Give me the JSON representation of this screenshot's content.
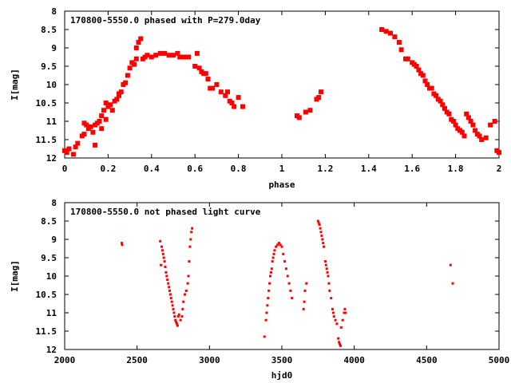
{
  "chart_data": [
    {
      "type": "scatter",
      "title": "170800-5550.0 phased with P=279.0day",
      "xlabel": "phase",
      "ylabel": "I[mag]",
      "xlim": [
        0,
        2
      ],
      "ylim": [
        12,
        8
      ],
      "y_inverted": true,
      "xticks": [
        0,
        0.2,
        0.4,
        0.6,
        0.8,
        1,
        1.2,
        1.4,
        1.6,
        1.8,
        2
      ],
      "xtick_labels": [
        "0",
        "0.2",
        "0.4",
        "0.6",
        "0.8",
        "1",
        "1.2",
        "1.4",
        "1.6",
        "1.8",
        "2"
      ],
      "yticks": [
        8,
        8.5,
        9,
        9.5,
        10,
        10.5,
        11,
        11.5,
        12
      ],
      "ytick_labels": [
        "8",
        "8.5",
        "9",
        "9.5",
        "10",
        "10.5",
        "11",
        "11.5",
        "12"
      ],
      "grid": false,
      "marker_color": "#ff0000",
      "series": [
        {
          "x": [
            0.0,
            0.01,
            0.02,
            0.04,
            0.05,
            0.06,
            0.08,
            0.09,
            0.09,
            0.1,
            0.11,
            0.12,
            0.13,
            0.14,
            0.14,
            0.15,
            0.16,
            0.17,
            0.17,
            0.18,
            0.19,
            0.19,
            0.2,
            0.21,
            0.22,
            0.23,
            0.24,
            0.25,
            0.25,
            0.26,
            0.27,
            0.28,
            0.29,
            0.3,
            0.31,
            0.32,
            0.33,
            0.33,
            0.34,
            0.35,
            0.36,
            0.37,
            0.38,
            0.4,
            0.42,
            0.44,
            0.46,
            0.48,
            0.5,
            0.52,
            0.53,
            0.55,
            0.57,
            0.6,
            0.61,
            0.62,
            0.63,
            0.64,
            0.65,
            0.66,
            0.67,
            0.68,
            0.7,
            0.72,
            0.74,
            0.75,
            0.76,
            0.77,
            0.78,
            0.8,
            0.82,
            1.07,
            1.08,
            1.11,
            1.13,
            1.16,
            1.17,
            1.18,
            1.46,
            1.48,
            1.5,
            1.52,
            1.54,
            1.55,
            1.57,
            1.58,
            1.6,
            1.61,
            1.62,
            1.63,
            1.64,
            1.65,
            1.66,
            1.67,
            1.68,
            1.69,
            1.7,
            1.71,
            1.72,
            1.73,
            1.74,
            1.75,
            1.76,
            1.77,
            1.78,
            1.79,
            1.8,
            1.81,
            1.82,
            1.83,
            1.84,
            1.85,
            1.86,
            1.87,
            1.88,
            1.89,
            1.9,
            1.91,
            1.92,
            1.94,
            1.96,
            1.98,
            1.99,
            2.0
          ],
          "y": [
            11.8,
            11.85,
            11.75,
            11.9,
            11.7,
            11.6,
            11.4,
            11.05,
            11.35,
            11.1,
            11.2,
            11.15,
            11.3,
            11.1,
            11.65,
            11.05,
            11.0,
            10.85,
            11.2,
            10.7,
            10.5,
            10.95,
            10.6,
            10.55,
            10.7,
            10.45,
            10.4,
            10.3,
            10.25,
            10.2,
            10.0,
            9.95,
            9.75,
            9.55,
            9.4,
            9.45,
            9.3,
            9.0,
            8.85,
            8.75,
            9.3,
            9.25,
            9.2,
            9.25,
            9.2,
            9.15,
            9.15,
            9.2,
            9.2,
            9.15,
            9.25,
            9.25,
            9.25,
            9.5,
            9.15,
            9.55,
            9.65,
            9.7,
            9.7,
            9.85,
            10.1,
            10.1,
            10.0,
            10.2,
            10.3,
            10.2,
            10.45,
            10.5,
            10.6,
            10.35,
            10.6,
            10.85,
            10.9,
            10.75,
            10.7,
            10.4,
            10.35,
            10.2,
            8.5,
            8.55,
            8.6,
            8.7,
            8.85,
            9.05,
            9.3,
            9.3,
            9.4,
            9.45,
            9.5,
            9.6,
            9.7,
            9.75,
            9.9,
            10.0,
            10.1,
            10.1,
            10.25,
            10.3,
            10.4,
            10.45,
            10.55,
            10.65,
            10.75,
            10.8,
            10.95,
            11.0,
            11.1,
            11.2,
            11.25,
            11.3,
            11.4,
            10.8,
            10.9,
            11.0,
            11.1,
            11.25,
            11.35,
            11.4,
            11.5,
            11.45,
            11.1,
            11.0,
            11.8,
            11.85
          ]
        }
      ]
    },
    {
      "type": "scatter",
      "title": "170800-5550.0 not phased light curve",
      "xlabel": "hjd0",
      "ylabel": "I[mag]",
      "xlim": [
        2000,
        5000
      ],
      "ylim": [
        12,
        8
      ],
      "y_inverted": true,
      "xticks": [
        2000,
        2500,
        3000,
        3500,
        4000,
        4500,
        5000
      ],
      "xtick_labels": [
        "2000",
        "2500",
        "3000",
        "3500",
        "4000",
        "4500",
        "5000"
      ],
      "yticks": [
        8,
        8.5,
        9,
        9.5,
        10,
        10.5,
        11,
        11.5,
        12
      ],
      "ytick_labels": [
        "8",
        "8.5",
        "9",
        "9.5",
        "10",
        "10.5",
        "11",
        "11.5",
        "12"
      ],
      "grid": false,
      "marker_color": "#ff0000",
      "series": [
        {
          "x": [
            2395,
            2397,
            2660,
            2665,
            2670,
            2675,
            2680,
            2685,
            2690,
            2695,
            2700,
            2705,
            2710,
            2715,
            2720,
            2725,
            2730,
            2735,
            2740,
            2745,
            2750,
            2755,
            2760,
            2765,
            2770,
            2775,
            2780,
            2785,
            2790,
            2800,
            2810,
            2815,
            2820,
            2830,
            2840,
            2850,
            2855,
            2860,
            2865,
            2870,
            2875,
            2880,
            3380,
            3390,
            3395,
            3400,
            3405,
            3410,
            3415,
            3420,
            3425,
            3430,
            3435,
            3440,
            3445,
            3450,
            3460,
            3470,
            3480,
            3490,
            3500,
            3510,
            3520,
            3530,
            3540,
            3550,
            3560,
            3570,
            3650,
            3655,
            3660,
            3670,
            3750,
            3755,
            3760,
            3765,
            3770,
            3775,
            3780,
            3785,
            3790,
            3800,
            3805,
            3810,
            3815,
            3820,
            3825,
            3830,
            3840,
            3850,
            3855,
            3860,
            3870,
            3880,
            3890,
            3895,
            3900,
            3905,
            3910,
            3920,
            3930,
            3935,
            3940,
            4665,
            4680
          ],
          "y": [
            9.1,
            9.15,
            9.05,
            9.7,
            9.2,
            9.3,
            9.4,
            9.5,
            9.6,
            9.75,
            9.9,
            10.0,
            10.1,
            10.2,
            10.3,
            10.4,
            10.5,
            10.6,
            10.7,
            10.8,
            10.9,
            11.0,
            11.1,
            11.2,
            11.25,
            11.3,
            11.35,
            11.1,
            11.05,
            11.2,
            11.1,
            10.9,
            10.7,
            10.5,
            10.4,
            10.2,
            10.0,
            9.6,
            9.2,
            9.0,
            8.8,
            8.7,
            11.65,
            11.2,
            11.0,
            10.8,
            10.6,
            10.4,
            10.2,
            10.0,
            9.9,
            9.8,
            9.6,
            9.5,
            9.4,
            9.3,
            9.2,
            9.15,
            9.1,
            9.15,
            9.2,
            9.4,
            9.6,
            9.8,
            10.0,
            10.2,
            10.4,
            10.6,
            10.9,
            10.7,
            10.4,
            10.2,
            8.5,
            8.55,
            8.6,
            8.7,
            8.8,
            8.9,
            9.0,
            9.1,
            9.2,
            9.6,
            9.7,
            9.8,
            9.9,
            10.0,
            10.2,
            10.4,
            10.6,
            10.9,
            11.0,
            11.1,
            11.2,
            11.3,
            11.7,
            11.8,
            11.85,
            11.9,
            11.4,
            11.2,
            11.0,
            10.9,
            11.0,
            9.7,
            10.2
          ]
        }
      ]
    }
  ]
}
